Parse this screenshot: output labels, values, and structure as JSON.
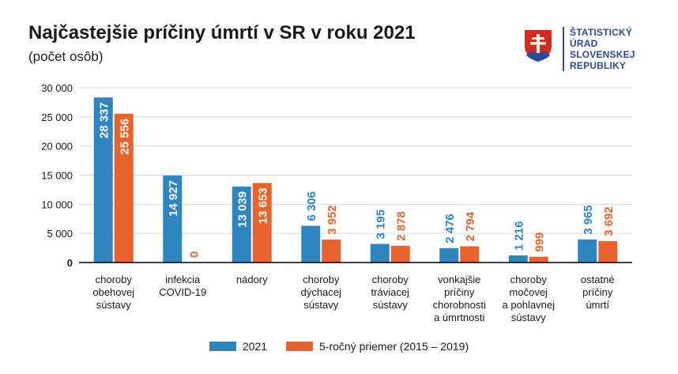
{
  "header": {
    "title": "Najčastejšie príčiny úmrtí v SR v roku 2021",
    "subtitle": "(počet osôb)"
  },
  "logo": {
    "lines": [
      "ŠTATISTICKÝ",
      "ÚRAD",
      "SLOVENSKEJ",
      "REPUBLIKY"
    ],
    "icon": "slovak-coat-of-arms-icon",
    "color": "#2b4a99"
  },
  "chart_data": {
    "type": "bar",
    "title": "Najčastejšie príčiny úmrtí v SR v roku 2021",
    "subtitle": "(počet osôb)",
    "xlabel": "",
    "ylabel": "",
    "ylim": [
      0,
      30000
    ],
    "yticks": [
      0,
      5000,
      10000,
      15000,
      20000,
      25000,
      30000
    ],
    "ytick_labels": [
      "0",
      "5 000",
      "10 000",
      "15 000",
      "20 000",
      "25 000",
      "30 000"
    ],
    "grid": true,
    "legend_position": "bottom",
    "categories": [
      [
        "choroby",
        "obehovej",
        "sústavy"
      ],
      [
        "infekcia",
        "COVID-19"
      ],
      [
        "nádory"
      ],
      [
        "choroby",
        "dýchacej",
        "sústavy"
      ],
      [
        "choroby",
        "tráviacej",
        "sústavy"
      ],
      [
        "vonkajšie",
        "príčiny",
        "chorobnosti",
        "a úmrtnosti"
      ],
      [
        "choroby",
        "močovej",
        "a pohlavnej",
        "sústavy"
      ],
      [
        "ostatné",
        "príčiny",
        "úmrtí"
      ]
    ],
    "series": [
      {
        "name": "2021",
        "color": "#2e86c1",
        "values": [
          28337,
          14927,
          13039,
          6306,
          3195,
          2476,
          1216,
          3965
        ],
        "labels": [
          "28 337",
          "14 927",
          "13 039",
          "6 306",
          "3 195",
          "2 476",
          "1 216",
          "3 965"
        ]
      },
      {
        "name": "5-ročný priemer (2015 – 2019)",
        "color": "#e8642c",
        "values": [
          25556,
          0,
          13653,
          3952,
          2878,
          2794,
          999,
          3692
        ],
        "labels": [
          "25 556",
          "0",
          "13 653",
          "3 952",
          "2 878",
          "2 794",
          "999",
          "3 692"
        ]
      }
    ]
  }
}
